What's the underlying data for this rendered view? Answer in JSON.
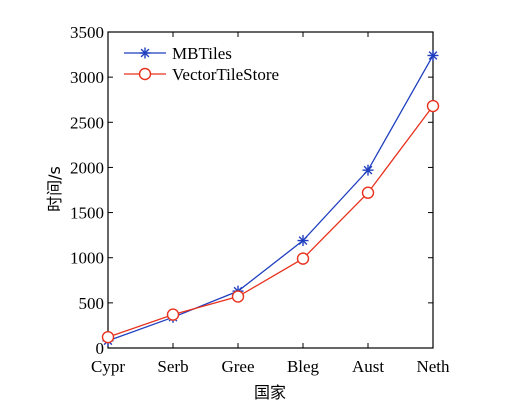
{
  "chart_data": {
    "type": "line",
    "categories": [
      "Cypr",
      "Serb",
      "Gree",
      "Bleg",
      "Aust",
      "Neth"
    ],
    "series": [
      {
        "name": "MBTiles",
        "values": [
          80,
          340,
          630,
          1190,
          1970,
          3240
        ],
        "color": "#1f3fbf",
        "marker": "star"
      },
      {
        "name": "VectorTileStore",
        "values": [
          120,
          370,
          570,
          990,
          1720,
          2680
        ],
        "color": "#e8321e",
        "marker": "circle"
      }
    ],
    "title": "",
    "xlabel": "国家",
    "ylabel": "时间/s",
    "ylim": [
      0,
      3500
    ],
    "yticks": [
      0,
      500,
      1000,
      1500,
      2000,
      2500,
      3000,
      3500
    ],
    "grid": false,
    "legend_position": "top-left"
  }
}
